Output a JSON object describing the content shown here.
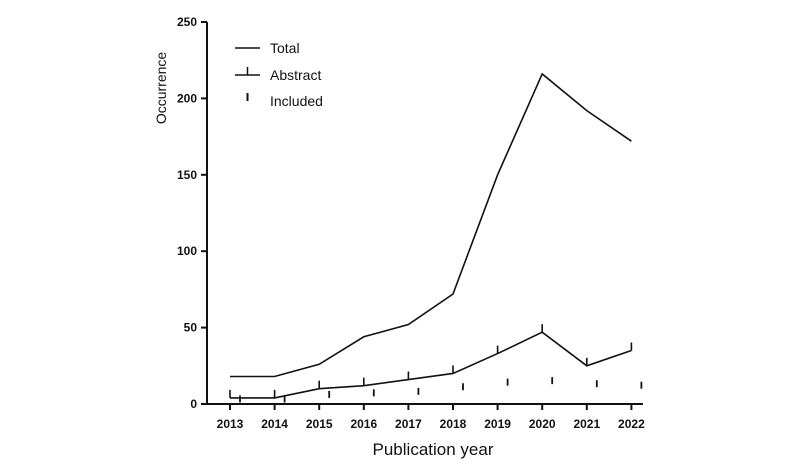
{
  "chart_data": {
    "type": "line",
    "title": "",
    "xlabel": "Publication year",
    "ylabel": "Occurrence",
    "categories": [
      "2013",
      "2014",
      "2015",
      "2016",
      "2017",
      "2018",
      "2019",
      "2020",
      "2021",
      "2022"
    ],
    "yticks": [
      "0",
      "50",
      "100",
      "150",
      "200",
      "250"
    ],
    "ylim": [
      0,
      250
    ],
    "grid": false,
    "legend_position": "top-left",
    "series": [
      {
        "name": "Total",
        "marker": "none",
        "values": [
          18,
          18,
          26,
          44,
          52,
          72,
          150,
          216,
          192,
          172
        ]
      },
      {
        "name": "Abstract",
        "marker": "tick",
        "values": [
          4,
          4,
          10,
          12,
          16,
          20,
          33,
          47,
          25,
          35
        ]
      },
      {
        "name": "Included",
        "marker": "tick-only",
        "values": [
          1,
          1,
          4,
          5,
          6,
          9,
          12,
          13,
          11,
          10
        ]
      }
    ]
  }
}
